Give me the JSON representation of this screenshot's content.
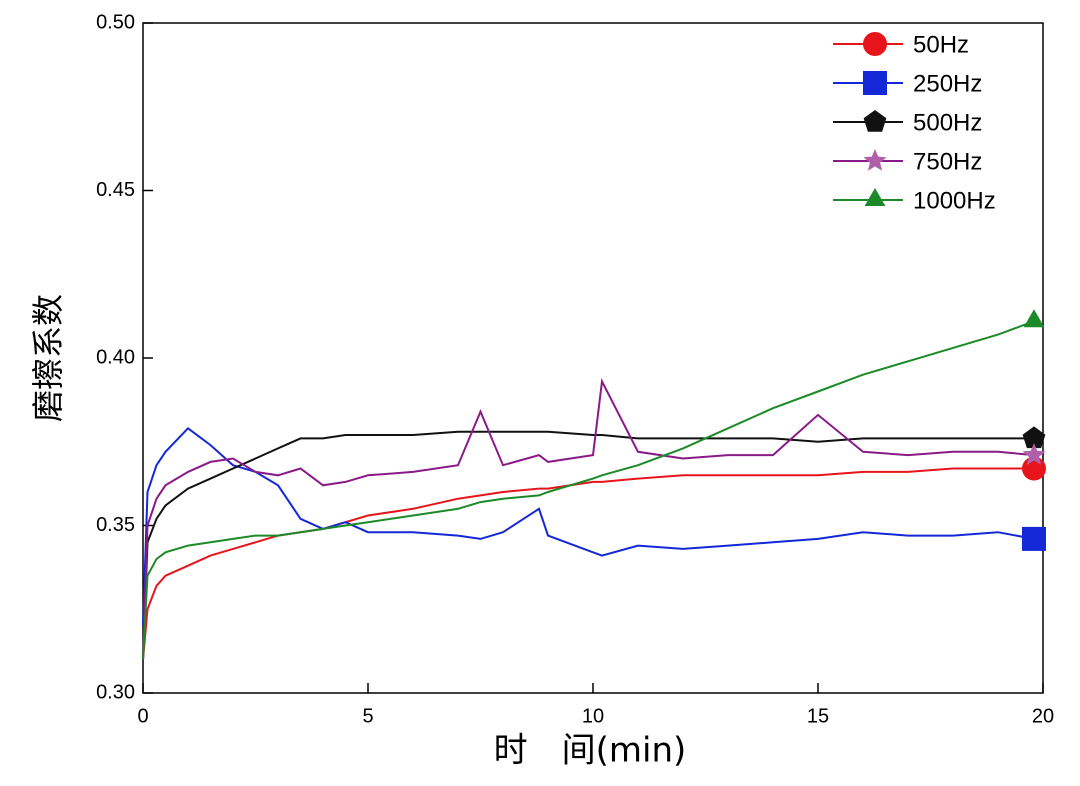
{
  "chart_data": {
    "type": "line",
    "xlabel": "时　间(min)",
    "ylabel": "磨擦系数",
    "xlim": [
      0,
      20
    ],
    "xticks": [
      0,
      5,
      10,
      15,
      20
    ],
    "ylim": [
      0.3,
      0.5
    ],
    "yticks": [
      {
        "value": 0.3,
        "label": "0.30"
      },
      {
        "value": 0.35,
        "label": "0.35"
      },
      {
        "value": 0.4,
        "label": "0.40"
      },
      {
        "value": 0.45,
        "label": "0.45"
      },
      {
        "value": 0.5,
        "label": "0.50"
      }
    ],
    "legend": "upper right",
    "x": [
      0,
      0.1,
      0.3,
      0.5,
      1,
      1.5,
      2,
      2.5,
      3,
      3.5,
      4,
      4.5,
      5,
      6,
      7,
      7.5,
      8,
      8.8,
      9,
      10,
      10.2,
      11,
      12,
      13,
      14,
      15,
      16,
      17,
      18,
      19,
      19.8
    ],
    "series": [
      {
        "name": "50Hz",
        "color": "#e8141c",
        "marker": "circle",
        "values": [
          0.31,
          0.325,
          0.332,
          0.335,
          0.338,
          0.341,
          0.343,
          0.345,
          0.347,
          0.348,
          0.349,
          0.351,
          0.353,
          0.355,
          0.358,
          0.359,
          0.36,
          0.361,
          0.361,
          0.363,
          0.363,
          0.364,
          0.365,
          0.365,
          0.365,
          0.365,
          0.366,
          0.366,
          0.367,
          0.367,
          0.367
        ]
      },
      {
        "name": "250Hz",
        "color": "#1428d8",
        "marker": "square",
        "values": [
          0.32,
          0.36,
          0.368,
          0.372,
          0.379,
          0.374,
          0.368,
          0.366,
          0.362,
          0.352,
          0.349,
          0.351,
          0.348,
          0.348,
          0.347,
          0.346,
          0.348,
          0.355,
          0.347,
          0.342,
          0.341,
          0.344,
          0.343,
          0.344,
          0.345,
          0.346,
          0.348,
          0.347,
          0.347,
          0.348,
          0.346
        ]
      },
      {
        "name": "500Hz",
        "color": "#111111",
        "marker": "pentagon",
        "values": [
          0.31,
          0.345,
          0.352,
          0.356,
          0.361,
          0.364,
          0.367,
          0.37,
          0.373,
          0.376,
          0.376,
          0.377,
          0.377,
          0.377,
          0.378,
          0.378,
          0.378,
          0.378,
          0.378,
          0.377,
          0.377,
          0.376,
          0.376,
          0.376,
          0.376,
          0.375,
          0.376,
          0.376,
          0.376,
          0.376,
          0.376
        ]
      },
      {
        "name": "750Hz",
        "color": "#8a1a88",
        "marker": "star",
        "values": [
          0.31,
          0.35,
          0.358,
          0.362,
          0.366,
          0.369,
          0.37,
          0.366,
          0.365,
          0.367,
          0.362,
          0.363,
          0.365,
          0.366,
          0.368,
          0.384,
          0.368,
          0.371,
          0.369,
          0.371,
          0.393,
          0.372,
          0.37,
          0.371,
          0.371,
          0.383,
          0.372,
          0.371,
          0.372,
          0.372,
          0.371
        ]
      },
      {
        "name": "1000Hz",
        "color": "#1c8a28",
        "marker": "triangle",
        "values": [
          0.31,
          0.335,
          0.34,
          0.342,
          0.344,
          0.345,
          0.346,
          0.347,
          0.347,
          0.348,
          0.349,
          0.35,
          0.351,
          0.353,
          0.355,
          0.357,
          0.358,
          0.359,
          0.36,
          0.364,
          0.365,
          0.368,
          0.373,
          0.379,
          0.385,
          0.39,
          0.395,
          0.399,
          0.403,
          0.407,
          0.411
        ]
      }
    ]
  }
}
